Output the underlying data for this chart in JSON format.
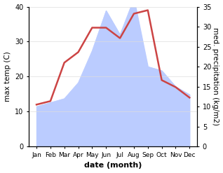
{
  "months": [
    "Jan",
    "Feb",
    "Mar",
    "Apr",
    "May",
    "Jun",
    "Jul",
    "Aug",
    "Sep",
    "Oct",
    "Nov",
    "Dec"
  ],
  "temperature": [
    12,
    13,
    24,
    27,
    34,
    34,
    31,
    38,
    39,
    19,
    17,
    14
  ],
  "precipitation": [
    10,
    11,
    12,
    16,
    24,
    34,
    28,
    37,
    20,
    19,
    15,
    13
  ],
  "temp_color": "#cc4444",
  "precip_color": "#bbccff",
  "ylabel_left": "max temp (C)",
  "ylabel_right": "med. precipitation (kg/m2)",
  "xlabel": "date (month)",
  "ylim_left": [
    0,
    40
  ],
  "ylim_right": [
    0,
    35
  ],
  "yticks_left": [
    0,
    10,
    20,
    30,
    40
  ],
  "yticks_right": [
    0,
    5,
    10,
    15,
    20,
    25,
    30,
    35
  ],
  "bg_color": "#ffffff",
  "line_width": 1.8,
  "xlabel_fontsize": 8,
  "ylabel_fontsize": 7.5
}
